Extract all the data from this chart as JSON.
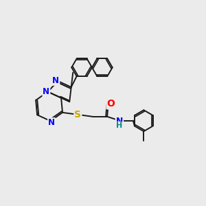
{
  "bg_color": "#ebebeb",
  "bond_color": "#1a1a1a",
  "bond_width": 1.4,
  "atom_colors": {
    "N": "#0000ff",
    "S": "#ccaa00",
    "O": "#ff0000",
    "H": "#008888",
    "C": "#1a1a1a"
  },
  "font_size": 8.5,
  "fig_size": [
    3.0,
    3.0
  ],
  "dpi": 100
}
